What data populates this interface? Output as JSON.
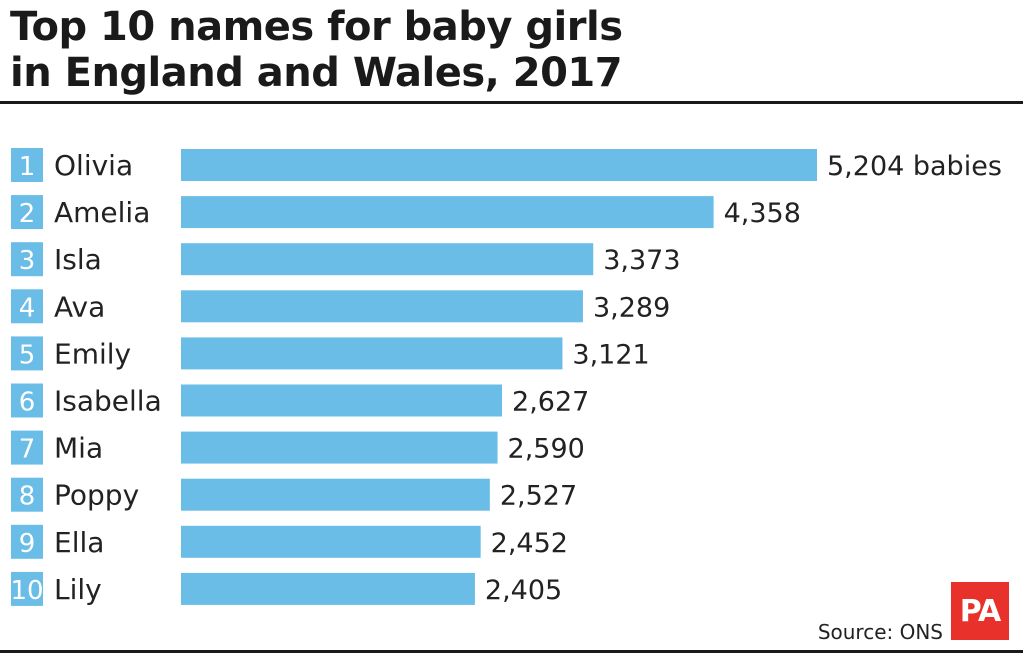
{
  "header": {
    "title_line1": "Top 10 names for baby girls",
    "title_line2": "in England and Wales, 2017"
  },
  "footer": {
    "source": "Source: ONS",
    "logo": "PA"
  },
  "colors": {
    "bar": "#6abde6",
    "rank_box": "#6abde6",
    "logo": "#e8312a"
  },
  "chart_data": {
    "type": "bar",
    "orientation": "horizontal",
    "title": "Top 10 names for baby girls in England and Wales, 2017",
    "xlabel": "",
    "ylabel": "",
    "unit_suffix_first": " babies",
    "xlim": [
      0,
      5204
    ],
    "ranks": [
      "1",
      "2",
      "3",
      "4",
      "5",
      "6",
      "7",
      "8",
      "9",
      "10"
    ],
    "categories": [
      "Olivia",
      "Amelia",
      "Isla",
      "Ava",
      "Emily",
      "Isabella",
      "Mia",
      "Poppy",
      "Ella",
      "Lily"
    ],
    "values": [
      5204,
      4358,
      3373,
      3289,
      3121,
      2627,
      2590,
      2527,
      2452,
      2405
    ],
    "value_labels": [
      "5,204 babies",
      "4,358",
      "3,373",
      "3,289",
      "3,121",
      "2,627",
      "2,590",
      "2,527",
      "2,452",
      "2,405"
    ]
  }
}
